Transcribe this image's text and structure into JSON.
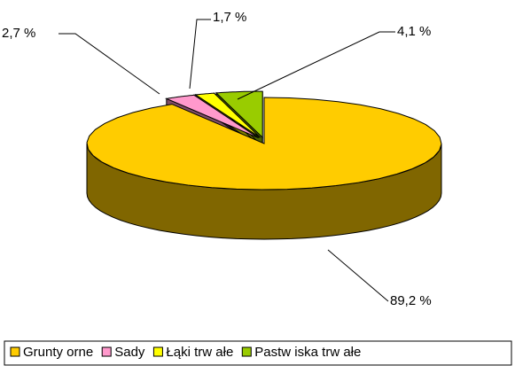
{
  "chart_data": {
    "type": "pie3d",
    "categories": [
      "Grunty orne",
      "Sady",
      "Łąki trw ałe",
      "Pastw iska trw ałe"
    ],
    "values": [
      89.2,
      2.7,
      1.7,
      4.1
    ],
    "value_labels": [
      "89,2 %",
      "2,7 %",
      "1,7 %",
      "4,1 %"
    ],
    "colors": [
      "#FFCC00",
      "#FF99CC",
      "#FFFF00",
      "#99CC00"
    ],
    "legend": "bottom"
  }
}
